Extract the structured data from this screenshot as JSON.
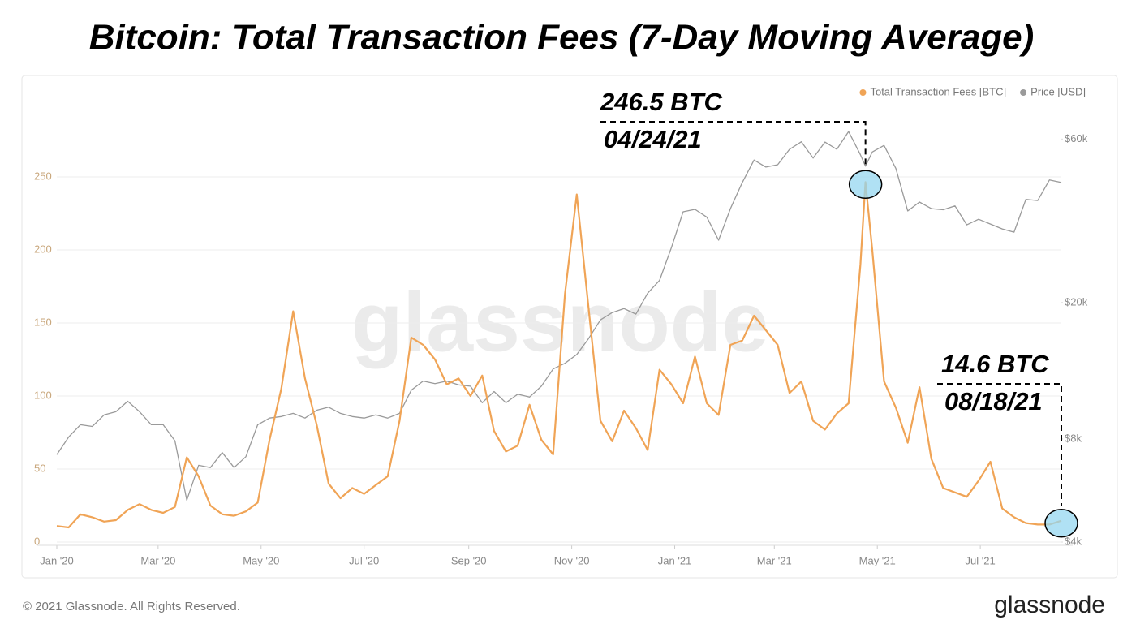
{
  "chart_data": {
    "type": "line",
    "title": "Bitcoin: Total Transaction Fees (7-Day Moving Average)",
    "watermark": "glassnode",
    "footer": "© 2021 Glassnode. All Rights Reserved.",
    "logo": "glassnode",
    "x": [
      "2020-01-01",
      "2020-01-08",
      "2020-01-15",
      "2020-01-22",
      "2020-01-29",
      "2020-02-05",
      "2020-02-12",
      "2020-02-19",
      "2020-02-26",
      "2020-03-04",
      "2020-03-11",
      "2020-03-18",
      "2020-03-25",
      "2020-04-01",
      "2020-04-08",
      "2020-04-15",
      "2020-04-22",
      "2020-04-29",
      "2020-05-06",
      "2020-05-13",
      "2020-05-20",
      "2020-05-27",
      "2020-06-03",
      "2020-06-10",
      "2020-06-17",
      "2020-06-24",
      "2020-07-01",
      "2020-07-08",
      "2020-07-15",
      "2020-07-22",
      "2020-07-29",
      "2020-08-05",
      "2020-08-12",
      "2020-08-19",
      "2020-08-26",
      "2020-09-02",
      "2020-09-09",
      "2020-09-16",
      "2020-09-23",
      "2020-09-30",
      "2020-10-07",
      "2020-10-14",
      "2020-10-21",
      "2020-10-28",
      "2020-11-04",
      "2020-11-11",
      "2020-11-18",
      "2020-11-25",
      "2020-12-02",
      "2020-12-09",
      "2020-12-16",
      "2020-12-23",
      "2020-12-30",
      "2021-01-06",
      "2021-01-13",
      "2021-01-20",
      "2021-01-27",
      "2021-02-03",
      "2021-02-10",
      "2021-02-17",
      "2021-02-24",
      "2021-03-03",
      "2021-03-10",
      "2021-03-17",
      "2021-03-24",
      "2021-03-31",
      "2021-04-07",
      "2021-04-14",
      "2021-04-21",
      "2021-04-24",
      "2021-04-28",
      "2021-05-05",
      "2021-05-12",
      "2021-05-19",
      "2021-05-26",
      "2021-06-02",
      "2021-06-09",
      "2021-06-16",
      "2021-06-23",
      "2021-06-30",
      "2021-07-07",
      "2021-07-14",
      "2021-07-21",
      "2021-07-28",
      "2021-08-04",
      "2021-08-11",
      "2021-08-18"
    ],
    "series": [
      {
        "name": "Total Transaction Fees [BTC]",
        "color": "#f0a456",
        "axis": "y",
        "values": [
          11,
          10,
          19,
          17,
          14,
          15,
          22,
          26,
          22,
          20,
          24,
          58,
          45,
          25,
          19,
          18,
          21,
          27,
          70,
          105,
          158,
          112,
          80,
          40,
          30,
          37,
          33,
          39,
          45,
          83,
          140,
          135,
          125,
          108,
          112,
          100,
          114,
          76,
          62,
          66,
          94,
          70,
          60,
          170,
          238,
          160,
          83,
          69,
          90,
          78,
          63,
          118,
          108,
          95,
          127,
          95,
          87,
          135,
          138,
          155,
          145,
          135,
          102,
          110,
          83,
          77,
          88,
          95,
          190,
          246.5,
          200,
          110,
          92,
          68,
          106,
          57,
          37,
          34,
          31,
          42,
          55,
          23,
          17,
          13,
          12,
          12,
          14.6
        ]
      },
      {
        "name": "Price [USD]",
        "color": "#9a9a9a",
        "axis": "y2",
        "values": [
          7200,
          8100,
          8800,
          8700,
          9400,
          9600,
          10300,
          9600,
          8800,
          8800,
          7900,
          5300,
          6700,
          6600,
          7300,
          6600,
          7100,
          8800,
          9200,
          9300,
          9500,
          9200,
          9700,
          9900,
          9500,
          9300,
          9200,
          9400,
          9200,
          9500,
          11100,
          11800,
          11600,
          11800,
          11500,
          11400,
          10200,
          11000,
          10200,
          10800,
          10600,
          11400,
          12800,
          13300,
          14100,
          15700,
          17800,
          18700,
          19200,
          18500,
          21300,
          23200,
          28900,
          36800,
          37400,
          35500,
          30400,
          37600,
          44800,
          52100,
          49700,
          50500,
          56000,
          58900,
          52800,
          58800,
          56000,
          63100,
          54000,
          50000,
          55000,
          57500,
          49200,
          37000,
          39300,
          37600,
          37300,
          38300,
          33700,
          35000,
          33900,
          32800,
          32100,
          40000,
          39700,
          45600,
          44800
        ]
      }
    ],
    "xlim": [
      "2020-01-01",
      "2021-08-18"
    ],
    "xticks": [
      {
        "value": "2020-01-01",
        "label": "Jan '20"
      },
      {
        "value": "2020-03-01",
        "label": "Mar '20"
      },
      {
        "value": "2020-05-01",
        "label": "May '20"
      },
      {
        "value": "2020-07-01",
        "label": "Jul '20"
      },
      {
        "value": "2020-09-01",
        "label": "Sep '20"
      },
      {
        "value": "2020-11-01",
        "label": "Nov '20"
      },
      {
        "value": "2021-01-01",
        "label": "Jan '21"
      },
      {
        "value": "2021-03-01",
        "label": "Mar '21"
      },
      {
        "value": "2021-05-01",
        "label": "May '21"
      },
      {
        "value": "2021-07-01",
        "label": "Jul '21"
      }
    ],
    "ylim": [
      0,
      300
    ],
    "yticks": [
      0,
      50,
      100,
      150,
      200,
      250
    ],
    "y2lim": [
      4000,
      76000
    ],
    "y2scale": "log",
    "y2ticks": [
      {
        "value": 4000,
        "label": "$4k"
      },
      {
        "value": 8000,
        "label": "$8k"
      },
      {
        "value": 20000,
        "label": "$20k"
      },
      {
        "value": 60000,
        "label": "$60k"
      }
    ],
    "grid": true,
    "legend": "top-right",
    "annotations": [
      {
        "label": "246.5 BTC",
        "sublabel": "04/24/21"
      },
      {
        "label": "14.6 BTC",
        "sublabel": "08/18/21"
      }
    ]
  }
}
